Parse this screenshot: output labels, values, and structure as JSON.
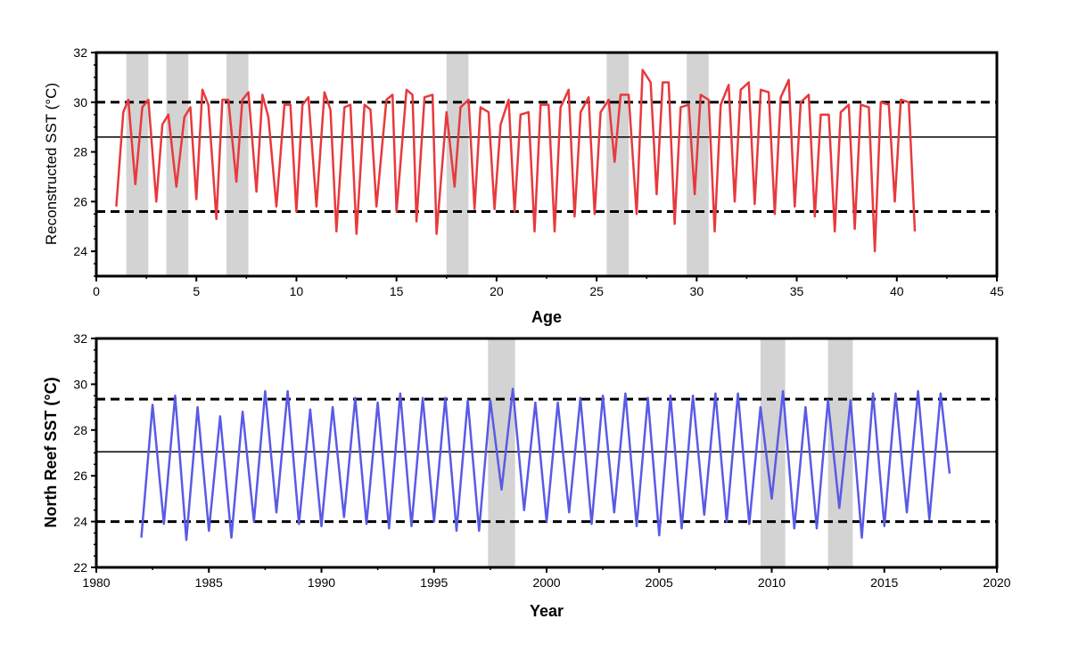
{
  "chart_data": [
    {
      "type": "line",
      "xlabel": "Age",
      "ylabel": "Reconstructed SST (°C)",
      "xlim": [
        0,
        45
      ],
      "ylim": [
        23,
        32
      ],
      "xticks": [
        0,
        5,
        10,
        15,
        20,
        25,
        30,
        35,
        40,
        45
      ],
      "yticks": [
        24,
        26,
        28,
        30,
        32
      ],
      "line_color": "#e8393d",
      "mean": 28.6,
      "upper_dashed": 30.0,
      "lower_dashed": 25.6,
      "shaded_regions": [
        [
          1.5,
          2.6
        ],
        [
          3.5,
          4.6
        ],
        [
          6.5,
          7.6
        ],
        [
          17.5,
          18.6
        ],
        [
          25.5,
          26.6
        ],
        [
          29.5,
          30.6
        ]
      ],
      "series": [
        {
          "name": "Reconstructed SST",
          "x": [
            1.0,
            1.35,
            1.6,
            1.95,
            2.3,
            2.6,
            3.0,
            3.3,
            3.6,
            4.0,
            4.4,
            4.7,
            5.0,
            5.3,
            5.6,
            6.0,
            6.3,
            6.6,
            7.0,
            7.3,
            7.6,
            8.0,
            8.3,
            8.6,
            9.0,
            9.4,
            9.7,
            10.0,
            10.3,
            10.6,
            11.0,
            11.4,
            11.7,
            12.0,
            12.4,
            12.7,
            13.0,
            13.4,
            13.7,
            14.0,
            14.5,
            14.8,
            15.0,
            15.5,
            15.8,
            16.0,
            16.4,
            16.8,
            17.0,
            17.5,
            17.9,
            18.2,
            18.6,
            18.9,
            19.2,
            19.6,
            19.9,
            20.2,
            20.6,
            20.9,
            21.2,
            21.6,
            21.9,
            22.2,
            22.6,
            22.9,
            23.2,
            23.6,
            23.9,
            24.2,
            24.6,
            24.9,
            25.2,
            25.6,
            25.9,
            26.2,
            26.6,
            27.0,
            27.3,
            27.7,
            28.0,
            28.3,
            28.6,
            28.9,
            29.2,
            29.6,
            29.9,
            30.2,
            30.6,
            30.9,
            31.2,
            31.6,
            31.9,
            32.2,
            32.6,
            32.9,
            33.2,
            33.6,
            33.9,
            34.2,
            34.6,
            34.9,
            35.2,
            35.6,
            35.9,
            36.2,
            36.6,
            36.9,
            37.2,
            37.6,
            37.9,
            38.2,
            38.6,
            38.9,
            39.2,
            39.6,
            39.9,
            40.2,
            40.6,
            40.9
          ],
          "values": [
            25.8,
            29.6,
            30.1,
            26.7,
            29.8,
            30.1,
            26.0,
            29.1,
            29.5,
            26.6,
            29.4,
            29.8,
            26.1,
            30.5,
            29.9,
            25.3,
            30.1,
            30.1,
            26.8,
            30.1,
            30.4,
            26.4,
            30.3,
            29.4,
            25.8,
            29.9,
            29.9,
            25.6,
            29.9,
            30.2,
            25.8,
            30.4,
            29.7,
            24.8,
            29.8,
            29.9,
            24.7,
            29.9,
            29.7,
            25.8,
            30.1,
            30.3,
            25.6,
            30.5,
            30.3,
            25.2,
            30.2,
            30.3,
            24.7,
            29.6,
            26.6,
            29.8,
            30.1,
            25.7,
            29.8,
            29.6,
            25.7,
            29.1,
            30.1,
            25.6,
            29.5,
            29.6,
            24.8,
            29.9,
            29.9,
            24.8,
            29.8,
            30.5,
            25.4,
            29.6,
            30.2,
            25.5,
            29.6,
            30.1,
            27.6,
            30.3,
            30.3,
            25.5,
            31.3,
            30.8,
            26.3,
            30.8,
            30.8,
            25.1,
            29.8,
            29.9,
            26.3,
            30.3,
            30.1,
            24.8,
            29.9,
            30.7,
            26.0,
            30.5,
            30.8,
            25.9,
            30.5,
            30.4,
            25.5,
            30.2,
            30.9,
            25.8,
            30.0,
            30.3,
            25.4,
            29.5,
            29.5,
            24.8,
            29.6,
            29.9,
            24.9,
            29.9,
            29.8,
            24.0,
            30.0,
            29.9,
            26.0,
            30.1,
            30.0,
            24.8
          ]
        }
      ]
    },
    {
      "type": "line",
      "xlabel": "Year",
      "ylabel": "North Reef SST (°C)",
      "xlim": [
        1980,
        2020
      ],
      "ylim": [
        22,
        32
      ],
      "xticks": [
        1980,
        1985,
        1990,
        1995,
        2000,
        2005,
        2010,
        2015,
        2020
      ],
      "yticks": [
        22,
        24,
        26,
        28,
        30,
        32
      ],
      "line_color": "#5a5ae6",
      "mean": 27.05,
      "upper_dashed": 29.35,
      "lower_dashed": 24.0,
      "shaded_regions": [
        [
          1997.4,
          1998.6
        ],
        [
          2009.5,
          2010.6
        ],
        [
          2012.5,
          2013.6
        ]
      ],
      "series": [
        {
          "name": "North Reef SST",
          "x": [
            1982.0,
            1982.5,
            1983.0,
            1983.5,
            1984.0,
            1984.5,
            1985.0,
            1985.5,
            1986.0,
            1986.5,
            1987.0,
            1987.5,
            1988.0,
            1988.5,
            1989.0,
            1989.5,
            1990.0,
            1990.5,
            1991.0,
            1991.5,
            1992.0,
            1992.5,
            1993.0,
            1993.5,
            1994.0,
            1994.5,
            1995.0,
            1995.5,
            1996.0,
            1996.5,
            1997.0,
            1997.5,
            1998.0,
            1998.5,
            1999.0,
            1999.5,
            2000.0,
            2000.5,
            2001.0,
            2001.5,
            2002.0,
            2002.5,
            2003.0,
            2003.5,
            2004.0,
            2004.5,
            2005.0,
            2005.5,
            2006.0,
            2006.5,
            2007.0,
            2007.5,
            2008.0,
            2008.5,
            2009.0,
            2009.5,
            2010.0,
            2010.5,
            2011.0,
            2011.5,
            2012.0,
            2012.5,
            2013.0,
            2013.5,
            2014.0,
            2014.5,
            2015.0,
            2015.5,
            2016.0,
            2016.5,
            2017.0,
            2017.5,
            2017.9
          ],
          "values": [
            23.3,
            29.1,
            23.9,
            29.5,
            23.2,
            29.0,
            23.6,
            28.6,
            23.3,
            28.8,
            24.0,
            29.7,
            24.4,
            29.7,
            23.9,
            28.9,
            23.8,
            29.0,
            24.2,
            29.4,
            23.9,
            29.2,
            23.7,
            29.6,
            23.8,
            29.4,
            24.0,
            29.4,
            23.6,
            29.3,
            23.6,
            29.3,
            25.4,
            29.8,
            24.5,
            29.2,
            24.0,
            29.2,
            24.4,
            29.4,
            23.9,
            29.5,
            24.4,
            29.6,
            23.8,
            29.4,
            23.4,
            29.5,
            23.7,
            29.5,
            24.3,
            29.6,
            24.0,
            29.6,
            23.9,
            29.0,
            25.0,
            29.7,
            23.7,
            29.0,
            23.7,
            29.3,
            24.6,
            29.3,
            23.3,
            29.6,
            23.8,
            29.6,
            24.4,
            29.7,
            24.1,
            29.6,
            26.1
          ]
        }
      ]
    }
  ]
}
